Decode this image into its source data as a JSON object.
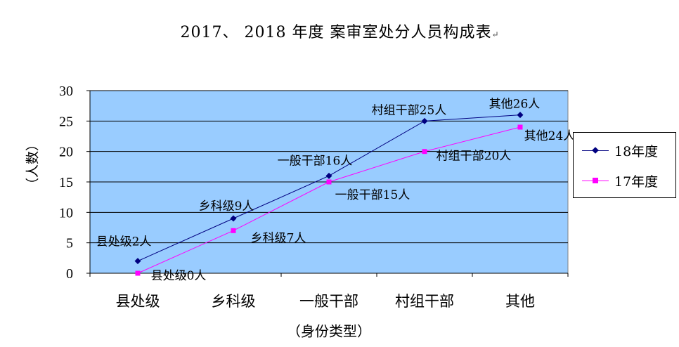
{
  "header": {
    "title": "2017、 2018 年度 案审室处分人员构成表",
    "title_mark": "↵"
  },
  "chart_data": {
    "type": "line",
    "title": "2017、 2018 年度 案审室处分人员构成表",
    "xlabel": "（身份类型）",
    "ylabel": "（人数）",
    "categories": [
      "县处级",
      "乡科级",
      "一般干部",
      "村组干部",
      "其他"
    ],
    "ylim": [
      0,
      30
    ],
    "yticks": [
      "0",
      "5",
      "10",
      "15",
      "20",
      "25",
      "30"
    ],
    "grid": true,
    "legend_position": "right",
    "plot_background": "#99CCFF",
    "series": [
      {
        "name": "18年度",
        "values": [
          2,
          9,
          16,
          25,
          26
        ],
        "color": "#000080",
        "marker": "diamond",
        "labels": [
          "县处级2人",
          "乡科级9人",
          "一般干部16人",
          "村组干部25人",
          "其他26人"
        ]
      },
      {
        "name": "17年度",
        "values": [
          0,
          7,
          15,
          20,
          24
        ],
        "color": "#FF00FF",
        "marker": "square",
        "labels": [
          "县处级0人",
          "乡科级7人",
          "一般干部15人",
          "村组干部20人",
          "其他24人"
        ]
      }
    ]
  }
}
